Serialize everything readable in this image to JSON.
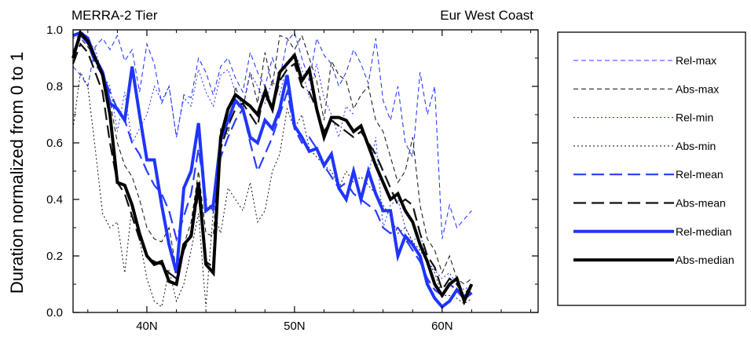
{
  "chart_data": {
    "type": "line",
    "title_left": "MERRA-2 Tier",
    "title_right": "Eur West Coast",
    "ylabel": "Duration normalized from 0 to 1",
    "xlabel": "",
    "xlim": [
      35,
      66.5
    ],
    "ylim": [
      0,
      1
    ],
    "x_ticks": [
      {
        "value": 40,
        "label": "40N"
      },
      {
        "value": 50,
        "label": "50N"
      },
      {
        "value": 60,
        "label": "60N"
      }
    ],
    "y_ticks": [
      {
        "value": 0.0,
        "label": "0.0"
      },
      {
        "value": 0.2,
        "label": "0.2"
      },
      {
        "value": 0.4,
        "label": "0.4"
      },
      {
        "value": 0.6,
        "label": "0.6"
      },
      {
        "value": 0.8,
        "label": "0.8"
      },
      {
        "value": 1.0,
        "label": "1.0"
      }
    ],
    "legend_position": "right",
    "series": [
      {
        "name": "Rel-max",
        "color": "#2a3cff",
        "style": "dashed",
        "weight": "thin",
        "x": [
          35,
          35.5,
          36,
          36.5,
          37,
          37.5,
          38,
          38.5,
          39,
          39.5,
          40,
          40.5,
          41,
          41.5,
          42,
          42.5,
          43,
          43.5,
          44,
          44.5,
          45,
          45.5,
          46,
          46.5,
          47,
          47.5,
          48,
          48.5,
          49,
          49.5,
          50,
          50.5,
          51,
          51.5,
          52,
          52.5,
          53,
          53.5,
          54,
          54.5,
          55,
          55.5,
          56,
          56.5,
          57,
          57.5,
          58,
          58.5,
          59,
          59.5,
          60,
          60.5,
          61,
          61.5,
          62
        ],
        "y": [
          0.87,
          0.84,
          0.8,
          0.94,
          0.97,
          0.93,
          0.98,
          0.89,
          0.93,
          0.78,
          0.95,
          0.88,
          0.74,
          0.8,
          0.62,
          0.77,
          0.76,
          0.9,
          0.85,
          0.77,
          0.87,
          0.9,
          0.83,
          0.78,
          0.92,
          0.85,
          0.8,
          0.9,
          0.83,
          0.96,
          0.99,
          0.9,
          0.82,
          0.97,
          0.91,
          0.88,
          0.8,
          0.85,
          0.93,
          0.88,
          0.81,
          0.97,
          0.75,
          0.68,
          0.8,
          0.6,
          0.55,
          0.85,
          0.7,
          0.8,
          0.26,
          0.38,
          0.3,
          0.33,
          0.36
        ]
      },
      {
        "name": "Abs-max",
        "color": "#222222",
        "style": "dashed",
        "weight": "thin",
        "x": [
          35,
          35.5,
          36,
          36.5,
          37,
          37.5,
          38,
          38.5,
          39,
          39.5,
          40,
          40.5,
          41,
          41.5,
          42,
          42.5,
          43,
          43.5,
          44,
          44.5,
          45,
          45.5,
          46,
          46.5,
          47,
          47.5,
          48,
          48.5,
          49,
          49.5,
          50,
          50.5,
          51,
          51.5,
          52,
          52.5,
          53,
          53.5,
          54,
          54.5,
          55,
          55.5,
          56,
          56.5,
          57,
          57.5,
          58,
          58.5,
          59,
          59.5,
          60,
          60.5,
          61,
          61.5,
          62
        ],
        "y": [
          0.9,
          0.97,
          0.94,
          0.9,
          0.85,
          0.75,
          0.6,
          0.52,
          0.48,
          0.4,
          0.3,
          0.26,
          0.25,
          0.3,
          0.15,
          0.24,
          0.32,
          0.5,
          0.28,
          0.27,
          0.65,
          0.63,
          0.8,
          0.72,
          0.85,
          0.74,
          0.92,
          0.8,
          0.98,
          0.97,
          0.93,
          0.98,
          0.9,
          0.82,
          0.68,
          0.89,
          0.84,
          0.82,
          0.72,
          0.77,
          0.8,
          0.68,
          0.64,
          0.55,
          0.46,
          0.5,
          0.62,
          0.38,
          0.26,
          0.22,
          0.14,
          0.2,
          0.12,
          0.1,
          0.12
        ]
      },
      {
        "name": "Rel-min",
        "color": "#2a3cff",
        "style": "dotted",
        "weight": "thin",
        "x": [
          35,
          35.5,
          36,
          36.5,
          37,
          37.5,
          38,
          38.5,
          39,
          39.5,
          40,
          40.5,
          41,
          41.5,
          42,
          42.5,
          43,
          43.5,
          44,
          44.5,
          45,
          45.5,
          46,
          46.5,
          47,
          47.5,
          48,
          48.5,
          49,
          49.5,
          50,
          50.5,
          51,
          51.5,
          52,
          52.5,
          53,
          53.5,
          54,
          null,
          55,
          55.5,
          56,
          56.5,
          57,
          57.5,
          58,
          58.5,
          59,
          59.5,
          60,
          60.5,
          61,
          61.5,
          62
        ],
        "y": [
          0.97,
          0.98,
          0.96,
          0.93,
          0.84,
          0.8,
          0.64,
          0.78,
          0.6,
          0.65,
          0.7,
          0.8,
          0.75,
          0.8,
          0.62,
          0.76,
          0.73,
          0.86,
          0.78,
          0.73,
          0.84,
          0.86,
          0.78,
          0.73,
          0.85,
          0.8,
          0.74,
          0.82,
          0.77,
          0.88,
          0.92,
          0.86,
          0.76,
          0.88,
          0.76,
          0.7,
          0.62,
          0.73,
          0.7,
          null,
          0.48,
          0.62,
          0.3,
          0.38,
          0.4,
          0.3,
          0.25,
          0.28,
          0.18,
          0.15,
          0.12,
          0.14,
          0.1,
          0.08,
          0.1
        ]
      },
      {
        "name": "Abs-min",
        "color": "#222222",
        "style": "dotted",
        "weight": "thin",
        "x": [
          35,
          35.5,
          36,
          36.5,
          37,
          37.5,
          38,
          38.5,
          39,
          39.5,
          40,
          40.5,
          41,
          41.5,
          42,
          42.5,
          43,
          43.5,
          44,
          44.5,
          45,
          45.5,
          46,
          46.5,
          47,
          47.5,
          48,
          48.5,
          49,
          49.5,
          50,
          50.5,
          51,
          51.5,
          52,
          52.5,
          53,
          53.5,
          54,
          54.5,
          55,
          55.5,
          56,
          56.5,
          57,
          57.5,
          58,
          58.5,
          59,
          59.5,
          60,
          60.5,
          61,
          61.5,
          62
        ],
        "y": [
          0.65,
          0.85,
          0.8,
          0.58,
          0.35,
          0.3,
          0.32,
          0.14,
          0.38,
          0.26,
          0.12,
          0.04,
          0.02,
          0.15,
          0.04,
          0.1,
          0.22,
          0.35,
          0.02,
          0.36,
          0.28,
          0.44,
          0.4,
          0.36,
          0.46,
          0.32,
          0.36,
          0.5,
          0.56,
          0.72,
          0.65,
          0.7,
          0.58,
          0.55,
          0.52,
          0.5,
          0.44,
          0.5,
          0.46,
          0.48,
          0.45,
          0.42,
          0.38,
          0.34,
          0.28,
          0.3,
          0.25,
          0.22,
          0.18,
          0.14,
          0.06,
          0.06,
          0.05,
          0.03,
          0.05
        ]
      },
      {
        "name": "Rel-mean",
        "color": "#2a3cff",
        "style": "longdash",
        "weight": "medium",
        "x": [
          35,
          35.5,
          36,
          36.5,
          37,
          37.5,
          38,
          38.5,
          39,
          39.5,
          40,
          40.5,
          41,
          41.5,
          42,
          42.5,
          43,
          43.5,
          44,
          44.5,
          45,
          45.5,
          46,
          46.5,
          47,
          47.5,
          48,
          48.5,
          49,
          49.5,
          50,
          50.5,
          51,
          51.5,
          52,
          52.5,
          53,
          53.5,
          54,
          54.5,
          55,
          55.5,
          56,
          56.5,
          57,
          57.5,
          58,
          58.5,
          59,
          59.5,
          60,
          60.5,
          61,
          61.5,
          62
        ],
        "y": [
          0.92,
          0.98,
          0.95,
          0.88,
          0.84,
          0.78,
          0.72,
          0.68,
          0.6,
          0.56,
          0.5,
          0.45,
          0.42,
          0.36,
          0.26,
          0.34,
          0.42,
          0.58,
          0.4,
          0.36,
          0.55,
          0.62,
          0.68,
          0.72,
          0.6,
          0.5,
          0.56,
          0.62,
          0.7,
          0.78,
          0.65,
          0.6,
          0.62,
          0.58,
          0.52,
          0.48,
          0.44,
          0.46,
          0.42,
          0.4,
          0.38,
          0.36,
          0.3,
          0.28,
          0.3,
          0.26,
          0.22,
          0.18,
          0.12,
          0.08,
          0.06,
          0.1,
          0.08,
          0.06,
          0.08
        ]
      },
      {
        "name": "Abs-mean",
        "color": "#111111",
        "style": "longdash",
        "weight": "medium",
        "x": [
          35,
          35.5,
          36,
          36.5,
          37,
          37.5,
          38,
          38.5,
          39,
          39.5,
          40,
          40.5,
          41,
          41.5,
          42,
          42.5,
          43,
          43.5,
          44,
          44.5,
          45,
          45.5,
          46,
          46.5,
          47,
          47.5,
          48,
          48.5,
          49,
          49.5,
          50,
          50.5,
          51,
          51.5,
          52,
          52.5,
          53,
          53.5,
          54,
          54.5,
          55,
          55.5,
          56,
          56.5,
          57,
          57.5,
          58,
          58.5,
          59,
          59.5,
          60,
          60.5,
          61,
          61.5,
          62
        ],
        "y": [
          0.88,
          0.95,
          0.92,
          0.85,
          0.78,
          0.6,
          0.46,
          0.42,
          0.34,
          0.26,
          0.2,
          0.18,
          0.17,
          0.14,
          0.12,
          0.22,
          0.28,
          0.42,
          0.18,
          0.16,
          0.58,
          0.66,
          0.72,
          0.74,
          0.7,
          0.66,
          0.8,
          0.72,
          0.82,
          0.86,
          0.88,
          0.8,
          0.78,
          0.72,
          0.64,
          0.68,
          0.66,
          0.64,
          0.62,
          0.64,
          0.6,
          0.56,
          0.5,
          0.44,
          0.38,
          0.4,
          0.38,
          0.28,
          0.2,
          0.16,
          0.08,
          0.12,
          0.1,
          0.06,
          0.1
        ]
      },
      {
        "name": "Rel-median",
        "color": "#1f35ff",
        "style": "solid",
        "weight": "thick",
        "x": [
          35,
          35.5,
          36,
          36.5,
          37,
          37.5,
          38,
          38.5,
          39,
          39.5,
          40,
          40.5,
          41,
          41.5,
          42,
          42.5,
          43,
          43.5,
          44,
          44.5,
          45,
          45.5,
          46,
          46.5,
          47,
          47.5,
          48,
          48.5,
          49,
          49.5,
          50,
          50.5,
          51,
          51.5,
          52,
          52.5,
          53,
          53.5,
          54,
          54.5,
          55,
          55.5,
          56,
          56.5,
          57,
          57.5,
          58,
          58.5,
          59,
          59.5,
          60,
          60.5,
          61,
          61.5,
          62
        ],
        "y": [
          0.98,
          0.99,
          0.97,
          0.9,
          0.85,
          0.74,
          0.72,
          0.68,
          0.87,
          0.7,
          0.54,
          0.54,
          0.38,
          0.24,
          0.14,
          0.44,
          0.5,
          0.67,
          0.36,
          0.38,
          0.61,
          0.68,
          0.75,
          0.72,
          0.62,
          0.6,
          0.68,
          0.65,
          0.72,
          0.84,
          0.66,
          0.62,
          0.57,
          0.58,
          0.52,
          0.56,
          0.44,
          0.4,
          0.5,
          0.4,
          0.5,
          0.42,
          0.36,
          0.36,
          0.2,
          0.27,
          0.24,
          0.2,
          0.1,
          0.05,
          0.02,
          0.04,
          0.08,
          0.05,
          0.07
        ]
      },
      {
        "name": "Abs-median",
        "color": "#000000",
        "style": "solid",
        "weight": "thick",
        "x": [
          35,
          35.5,
          36,
          36.5,
          37,
          37.5,
          38,
          38.5,
          39,
          39.5,
          40,
          40.5,
          41,
          41.5,
          42,
          42.5,
          43,
          43.5,
          44,
          44.5,
          45,
          45.5,
          46,
          46.5,
          47,
          47.5,
          48,
          48.5,
          49,
          49.5,
          50,
          50.5,
          51,
          51.5,
          52,
          52.5,
          53,
          53.5,
          54,
          54.5,
          55,
          55.5,
          56,
          56.5,
          57,
          57.5,
          58,
          58.5,
          59,
          59.5,
          60,
          60.5,
          61,
          61.5,
          62
        ],
        "y": [
          0.9,
          0.99,
          0.96,
          0.9,
          0.84,
          0.7,
          0.46,
          0.45,
          0.38,
          0.28,
          0.2,
          0.17,
          0.18,
          0.11,
          0.1,
          0.24,
          0.27,
          0.46,
          0.17,
          0.14,
          0.62,
          0.72,
          0.77,
          0.75,
          0.73,
          0.7,
          0.78,
          0.72,
          0.85,
          0.88,
          0.91,
          0.82,
          0.86,
          0.72,
          0.62,
          0.69,
          0.69,
          0.68,
          0.64,
          0.66,
          0.59,
          0.52,
          0.46,
          0.4,
          0.42,
          0.36,
          0.32,
          0.24,
          0.18,
          0.1,
          0.06,
          0.1,
          0.12,
          0.04,
          0.1
        ]
      }
    ]
  }
}
